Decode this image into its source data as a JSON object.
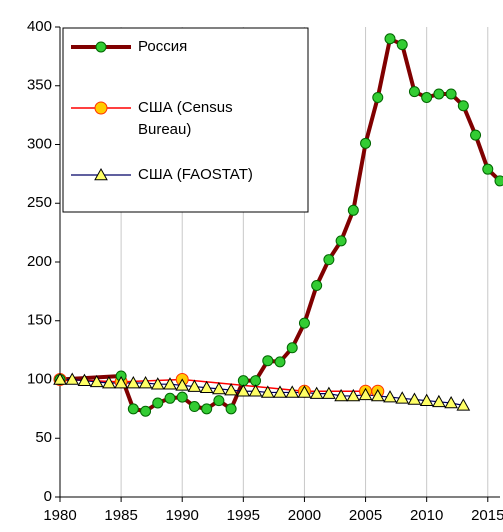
{
  "chart_data": {
    "type": "line",
    "xlim": [
      1980,
      2016
    ],
    "xticks": [
      1980,
      1985,
      1990,
      1995,
      2000,
      2005,
      2010,
      2015
    ],
    "ylim": [
      0,
      400
    ],
    "yticks": [
      0,
      50,
      100,
      150,
      200,
      250,
      300,
      350,
      400
    ],
    "grid": "x",
    "legend": "upper left",
    "series": [
      {
        "name": "Россия",
        "color": "#800000",
        "marker": "circle",
        "marker_color": "#33cc33",
        "x": [
          1980,
          1985,
          1986,
          1987,
          1988,
          1989,
          1990,
          1991,
          1992,
          1993,
          1994,
          1995,
          1996,
          1997,
          1998,
          1999,
          2000,
          2001,
          2002,
          2003,
          2004,
          2005,
          2006,
          2007,
          2008,
          2009,
          2010,
          2011,
          2012,
          2013,
          2014,
          2015,
          2016
        ],
        "values": [
          100,
          103,
          75,
          73,
          80,
          84,
          85,
          77,
          75,
          82,
          75,
          99,
          99,
          116,
          115,
          127,
          148,
          180,
          202,
          218,
          244,
          301,
          340,
          390,
          385,
          345,
          340,
          343,
          343,
          333,
          308,
          279,
          269
        ]
      },
      {
        "name": "США (Census Bureau)",
        "color": "#ff0000",
        "marker": "circle",
        "marker_color": "#ffcc00",
        "x": [
          1980,
          1985,
          1990,
          2000,
          2005,
          2006
        ],
        "values": [
          100,
          98,
          100,
          90,
          90,
          90
        ]
      },
      {
        "name": "США (FAOSTAT)",
        "color": "#000066",
        "marker": "triangle",
        "marker_color": "#ffff66",
        "x": [
          1980,
          1981,
          1982,
          1983,
          1984,
          1985,
          1986,
          1987,
          1988,
          1989,
          1990,
          1991,
          1992,
          1993,
          1994,
          1995,
          1996,
          1997,
          1998,
          1999,
          2000,
          2001,
          2002,
          2003,
          2004,
          2005,
          2006,
          2007,
          2008,
          2009,
          2010,
          2011,
          2012,
          2013
        ],
        "values": [
          100,
          100,
          99,
          98,
          97,
          97,
          97,
          97,
          96,
          96,
          95,
          94,
          93,
          92,
          91,
          90,
          90,
          89,
          89,
          89,
          89,
          88,
          88,
          86,
          86,
          87,
          86,
          85,
          84,
          83,
          82,
          81,
          80,
          78
        ]
      }
    ]
  }
}
